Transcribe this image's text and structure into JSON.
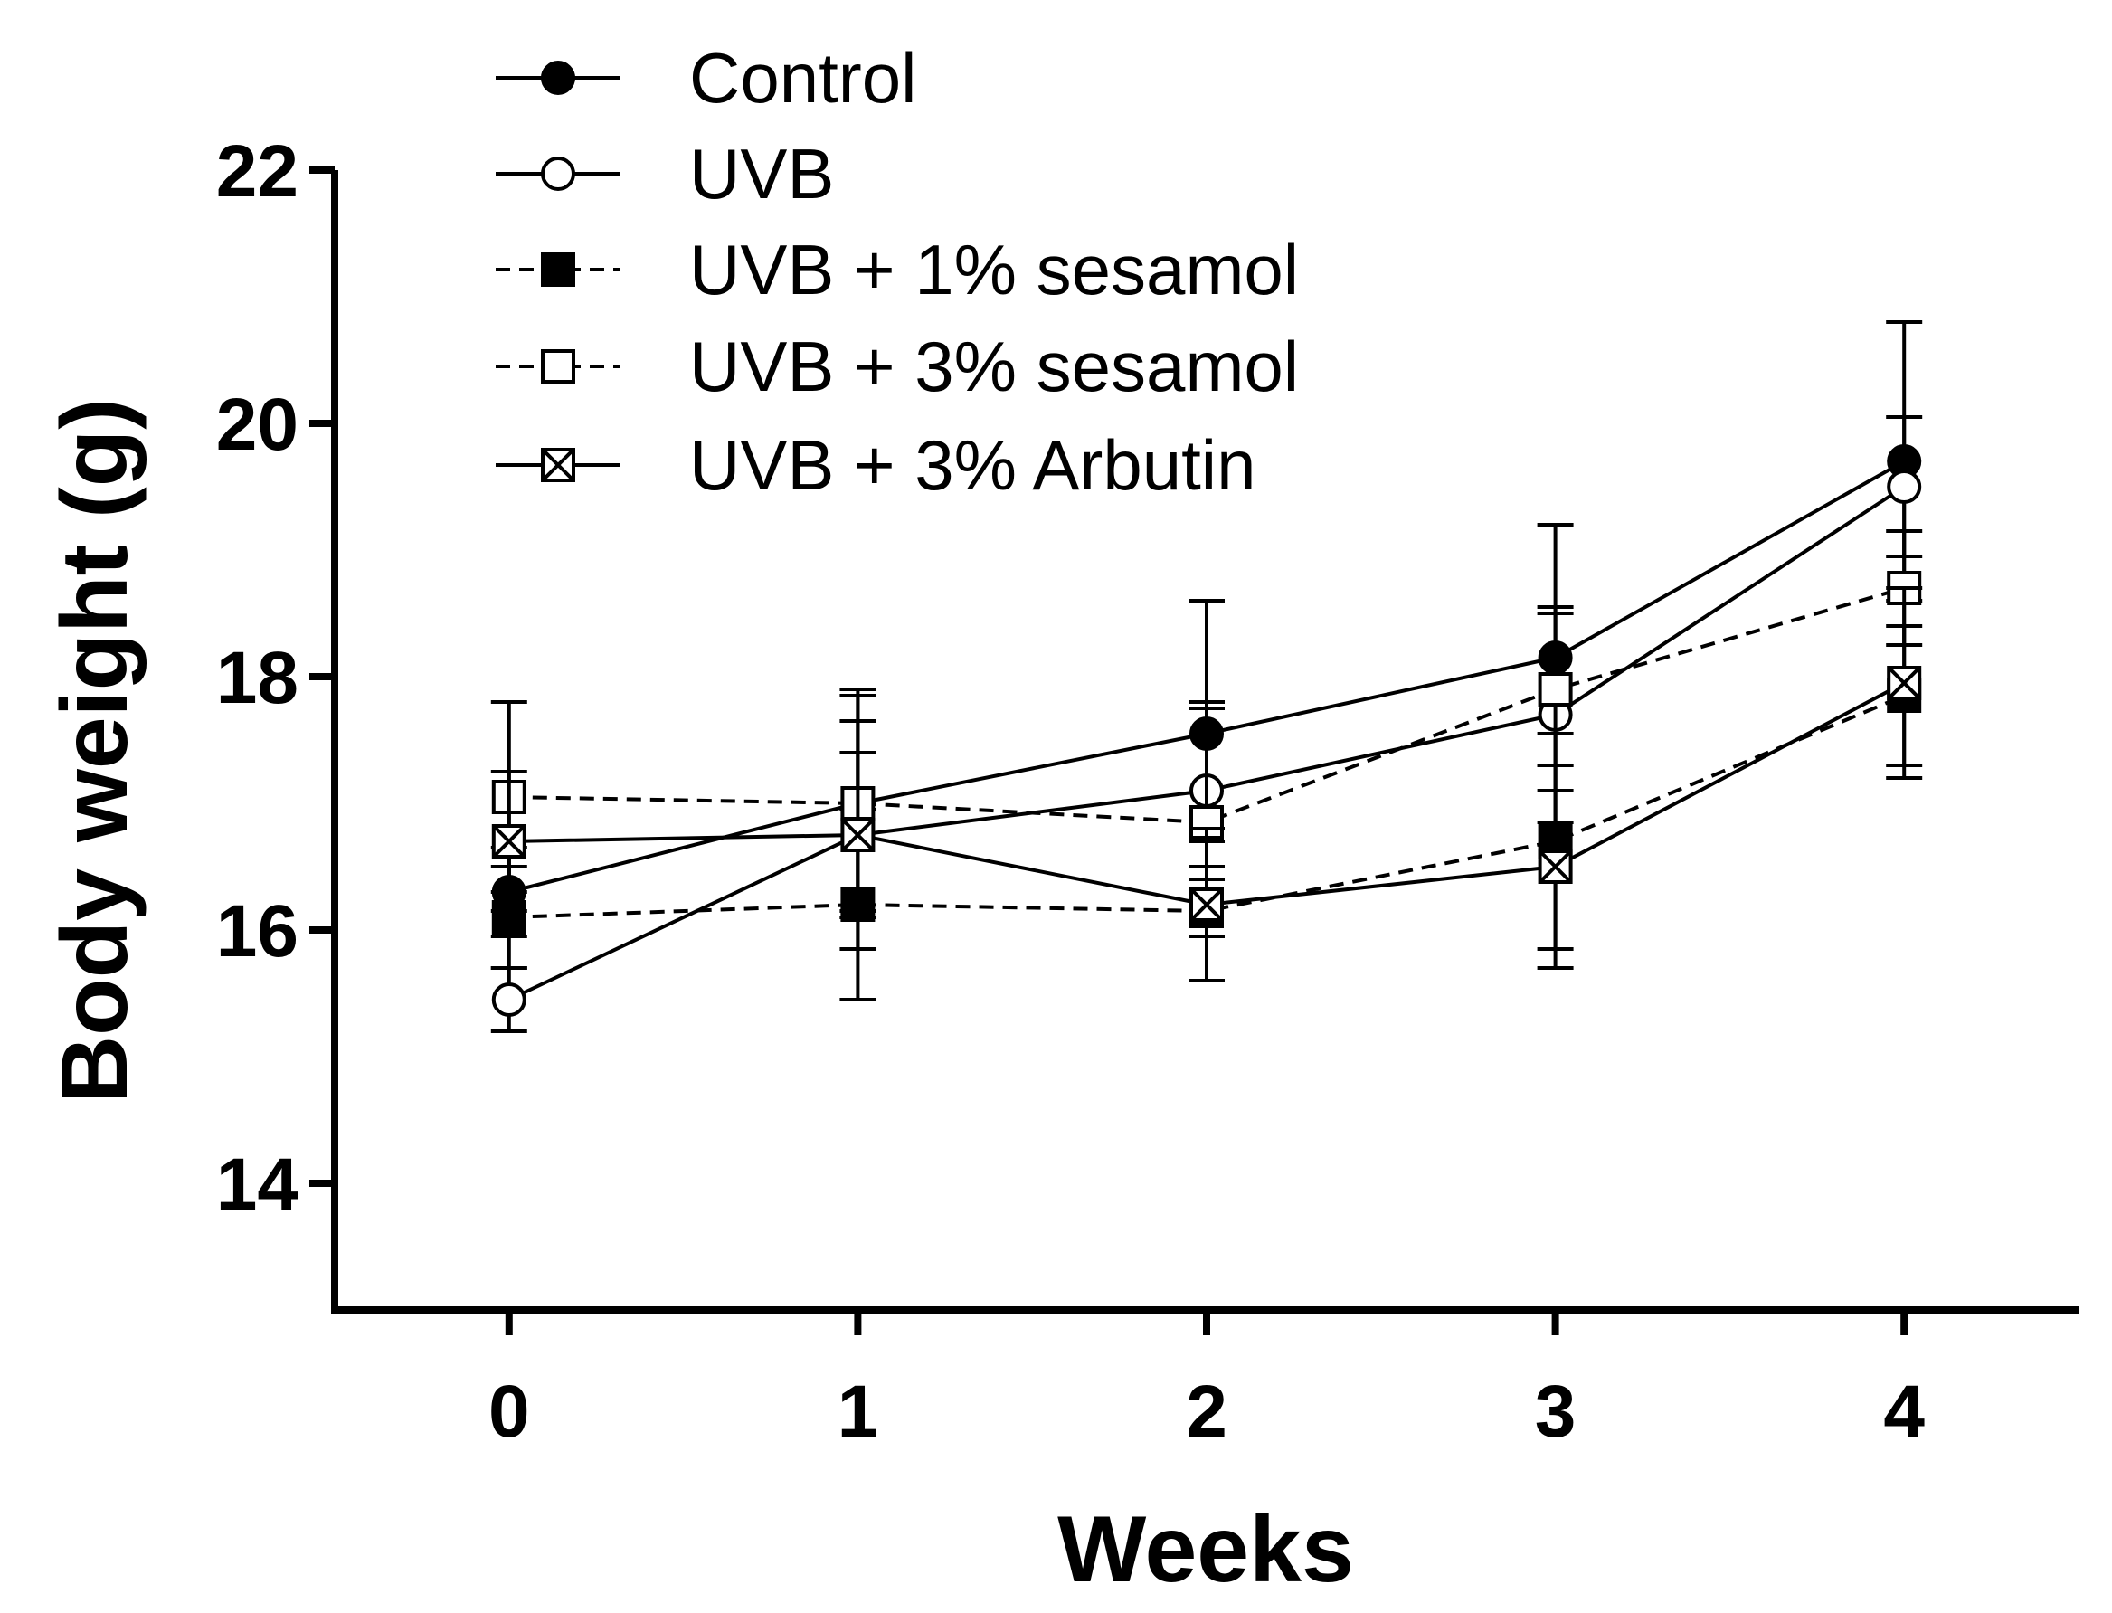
{
  "chart_data": {
    "type": "line",
    "title": "",
    "xlabel": "Weeks",
    "ylabel": "Body weight (g)",
    "x": [
      0,
      1,
      2,
      3,
      4
    ],
    "xlim": [
      -0.5,
      4.5
    ],
    "ylim": [
      13,
      22
    ],
    "xticks": [
      "0",
      "1",
      "2",
      "3",
      "4"
    ],
    "yticks": [
      "14",
      "16",
      "18",
      "20",
      "22"
    ],
    "ytick_values": [
      14,
      16,
      18,
      20,
      22
    ],
    "grid": false,
    "legend_position": "top-left",
    "series": [
      {
        "name": "Control",
        "marker": "filled-circle",
        "line": "solid",
        "values": [
          16.3,
          17.0,
          17.55,
          18.15,
          19.7
        ],
        "errors": [
          0.35,
          0.9,
          1.05,
          1.05,
          1.1
        ]
      },
      {
        "name": "UVB",
        "marker": "open-circle",
        "line": "solid",
        "values": [
          15.45,
          16.75,
          17.1,
          17.7,
          19.5
        ],
        "errors": [
          0.25,
          0.9,
          0.7,
          0.85,
          0.55
        ]
      },
      {
        "name": "UVB + 1% sesamol",
        "marker": "filled-square",
        "line": "dashed",
        "values": [
          16.1,
          16.2,
          16.15,
          16.7,
          17.85
        ],
        "errors": [
          0.4,
          0.75,
          0.55,
          0.85,
          0.55
        ]
      },
      {
        "name": "UVB + 3% sesamol",
        "marker": "open-square",
        "line": "dashed",
        "values": [
          17.05,
          17.0,
          16.85,
          17.9,
          18.7
        ],
        "errors": [
          0.75,
          0.85,
          0.9,
          0.6,
          0.45
        ]
      },
      {
        "name": "UVB + 3% Arbutin",
        "marker": "crossed-square",
        "line": "solid",
        "values": [
          16.7,
          16.75,
          16.2,
          16.5,
          17.95
        ],
        "errors": [
          0.55,
          0.65,
          0.6,
          0.8,
          0.75
        ]
      }
    ]
  }
}
